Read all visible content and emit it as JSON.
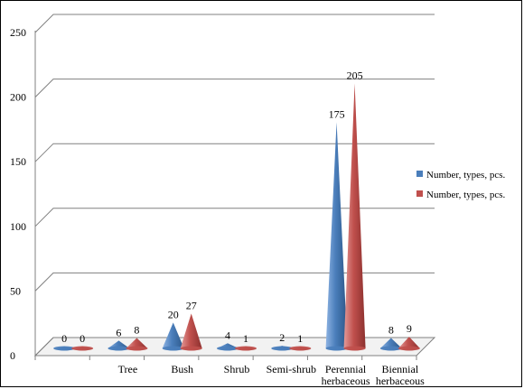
{
  "chart_data": {
    "type": "bar",
    "bar_shape": "cone",
    "categories": [
      "",
      "Tree",
      "Bush",
      "Shrub",
      "Semi-shrub",
      "Perennial herbaceous",
      "Biennial herbaceous"
    ],
    "category_lines": [
      [
        ""
      ],
      [
        "Tree"
      ],
      [
        "Bush"
      ],
      [
        "Shrub"
      ],
      [
        "Semi-shrub"
      ],
      [
        "Perennial",
        "herbaceous"
      ],
      [
        "Biennial",
        "herbaceous"
      ]
    ],
    "series": [
      {
        "name": "Number, types, pcs.",
        "color": "#4a7ebb",
        "values": [
          0,
          6,
          20,
          4,
          2,
          175,
          8
        ]
      },
      {
        "name": "Number, types, pcs.",
        "color": "#c0504d",
        "values": [
          0,
          8,
          27,
          1,
          1,
          205,
          9
        ]
      }
    ],
    "ylim": [
      0,
      250
    ],
    "yticks": [
      0,
      50,
      100,
      150,
      200,
      250
    ],
    "grid": true,
    "legend_position": "right",
    "title": "",
    "xlabel": "",
    "ylabel": ""
  }
}
